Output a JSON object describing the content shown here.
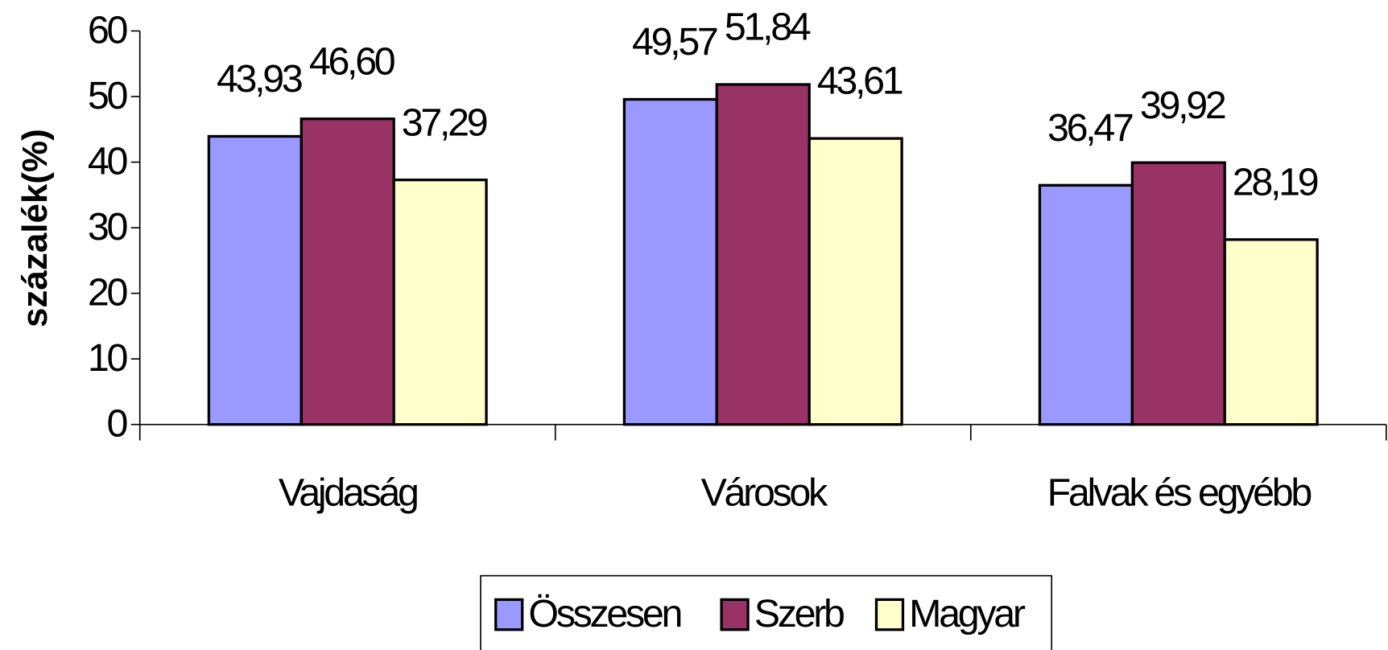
{
  "chart_data": {
    "type": "bar",
    "y_label": "százalék(%)",
    "categories": [
      "Vajdaság",
      "Városok",
      "Falvak és egyébb"
    ],
    "series": [
      {
        "name": "Összesen",
        "color": "#9999ff",
        "values": [
          43.93,
          49.57,
          36.47
        ],
        "value_labels": [
          "43,93",
          "49,57",
          "36,47"
        ]
      },
      {
        "name": "Szerb",
        "color": "#993366",
        "values": [
          46.6,
          51.84,
          39.92
        ],
        "value_labels": [
          "46,60",
          "51,84",
          "39,92"
        ]
      },
      {
        "name": "Magyar",
        "color": "#ffffcc",
        "values": [
          37.29,
          43.61,
          28.19
        ],
        "value_labels": [
          "37,29",
          "43,61",
          "28,19"
        ]
      }
    ],
    "ylim": [
      0,
      60
    ],
    "yticks": [
      0,
      10,
      20,
      30,
      40,
      50,
      60
    ],
    "legend": "bottom"
  }
}
